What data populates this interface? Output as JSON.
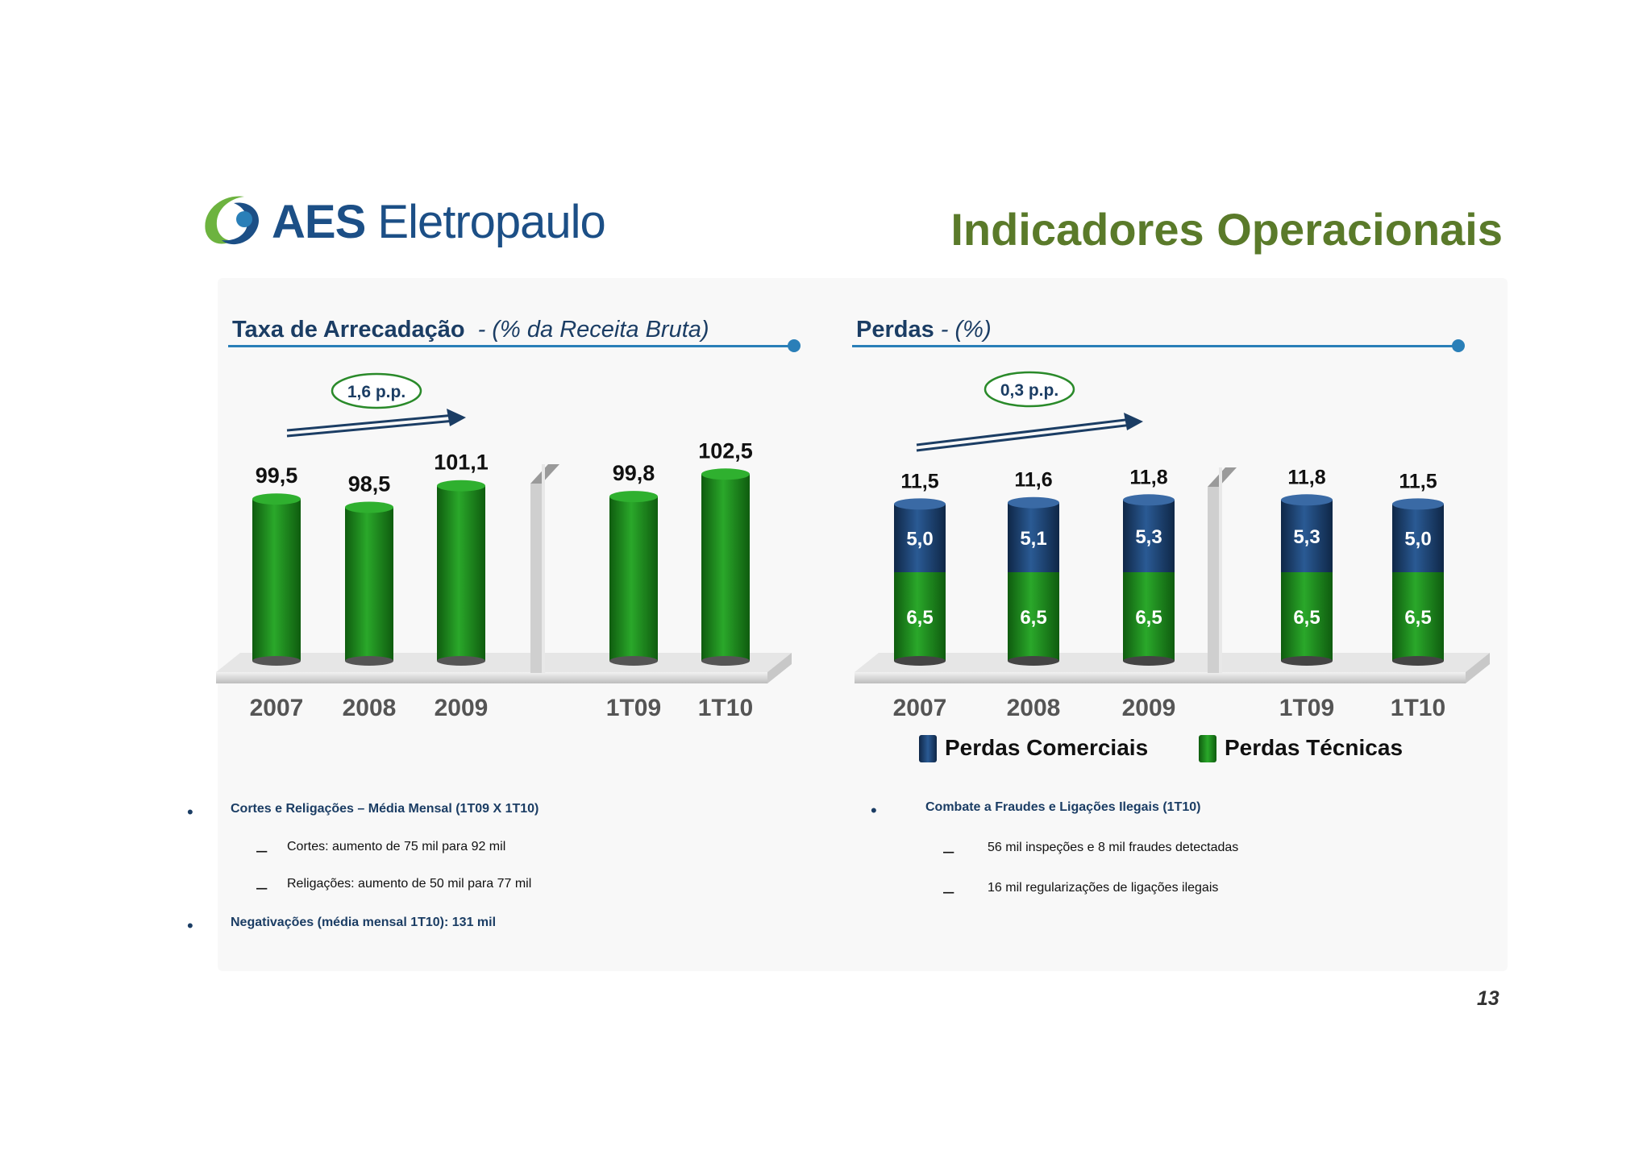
{
  "header": {
    "logo_text_bold": "AES",
    "logo_text_light": "Eletropaulo",
    "title": "Indicadores Operacionais",
    "page_number": "13"
  },
  "colors": {
    "green": "#1e8a1e",
    "navy": "#1c3f6e",
    "title_green": "#5a7a2a",
    "line_blue": "#2a7fb8"
  },
  "chart_left": {
    "heading_bold": "Taxa de Arrecadação",
    "heading_italic": "- (% da Receita Bruta)"
  },
  "chart_right": {
    "heading_bold": "Perdas",
    "heading_italic": "- (%)"
  },
  "chart_data": [
    {
      "type": "bar",
      "title": "Taxa de Arrecadação - (% da Receita Bruta)",
      "categories": [
        "2007",
        "2008",
        "2009",
        "1T09",
        "1T10"
      ],
      "values": [
        99.5,
        98.5,
        101.1,
        99.8,
        102.5
      ],
      "value_labels": [
        "99,5",
        "98,5",
        "101,1",
        "99,8",
        "102,5"
      ],
      "annotation": "1,6 p.p.",
      "grid": false
    },
    {
      "type": "bar",
      "stacked": true,
      "title": "Perdas - (%)",
      "categories": [
        "2007",
        "2008",
        "2009",
        "1T09",
        "1T10"
      ],
      "series": [
        {
          "name": "Perdas Técnicas",
          "values": [
            6.5,
            6.5,
            6.5,
            6.5,
            6.5
          ],
          "labels": [
            "6,5",
            "6,5",
            "6,5",
            "6,5",
            "6,5"
          ],
          "color": "#1e8a1e"
        },
        {
          "name": "Perdas Comerciais",
          "values": [
            5.0,
            5.1,
            5.3,
            5.3,
            5.0
          ],
          "labels": [
            "5,0",
            "5,1",
            "5,3",
            "5,3",
            "5,0"
          ],
          "color": "#1c3f6e"
        }
      ],
      "totals": [
        11.5,
        11.6,
        11.8,
        11.8,
        11.5
      ],
      "total_labels": [
        "11,5",
        "11,6",
        "11,8",
        "11,8",
        "11,5"
      ],
      "annotation": "0,3 p.p.",
      "legend": [
        "Perdas Comerciais",
        "Perdas Técnicas"
      ],
      "legend_position": "bottom",
      "grid": false
    }
  ],
  "bullets_left": {
    "items": [
      {
        "text": "Cortes e Religações – Média Mensal (1T09 X 1T10)"
      },
      {
        "text": "Cortes: aumento de 75 mil para 92 mil"
      },
      {
        "text": "Religações: aumento de 50 mil para 77 mil"
      },
      {
        "text": "Negativações (média mensal 1T10): 131 mil"
      }
    ]
  },
  "bullets_right": {
    "items": [
      {
        "text": "Combate a Fraudes e Ligações Ilegais (1T10)"
      },
      {
        "text": "56 mil inspeções e 8 mil fraudes detectadas"
      },
      {
        "text": "16 mil regularizações de ligações ilegais"
      }
    ]
  }
}
